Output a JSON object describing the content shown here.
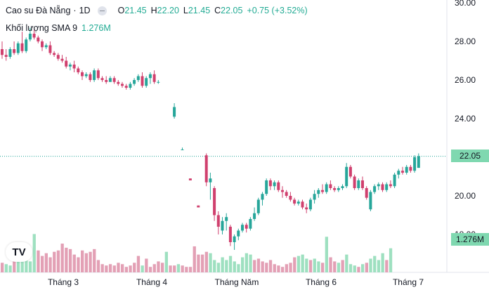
{
  "header": {
    "symbol": "Cao su Đà Nẵng",
    "interval": "1D",
    "open_label": "O",
    "open": "21.45",
    "high_label": "H",
    "high": "22.20",
    "low_label": "L",
    "low": "21.45",
    "close_label": "C",
    "close": "22.05",
    "change": "+0.75 (+3.52%)",
    "volume_label": "Khối lượng SMA 9",
    "volume_value": "1.276M"
  },
  "price_tags": {
    "last_price": "22.05",
    "volume": "1.276M"
  },
  "logo": "TV",
  "colors": {
    "up": "#26a69a",
    "down": "#d0406e",
    "up_volume": "#9ee0c0",
    "down_volume": "#e3a0b5",
    "last_price_line": "#26a69a"
  },
  "chart_data": {
    "type": "candlestick",
    "x_tick_labels": [
      "Tháng 3",
      "Tháng 4",
      "Tháng Năm",
      "Tháng 6",
      "Tháng 7"
    ],
    "y_tick_labels": [
      "30.00",
      "28.00",
      "26.00",
      "24.00",
      "22.00",
      "20.00",
      "18.00"
    ],
    "ylim": [
      17,
      30
    ],
    "last_price": 22.05,
    "candles": [
      {
        "o": 27.6,
        "h": 28.0,
        "l": 27.1,
        "c": 27.3
      },
      {
        "o": 27.3,
        "h": 27.6,
        "l": 27.0,
        "c": 27.2
      },
      {
        "o": 27.2,
        "h": 27.7,
        "l": 27.1,
        "c": 27.6
      },
      {
        "o": 27.6,
        "h": 28.0,
        "l": 27.3,
        "c": 27.4
      },
      {
        "o": 27.4,
        "h": 28.0,
        "l": 27.3,
        "c": 27.9
      },
      {
        "o": 27.9,
        "h": 28.5,
        "l": 27.4,
        "c": 27.5
      },
      {
        "o": 27.5,
        "h": 28.2,
        "l": 27.4,
        "c": 28.1
      },
      {
        "o": 28.1,
        "h": 28.7,
        "l": 28.0,
        "c": 28.4
      },
      {
        "o": 28.4,
        "h": 28.6,
        "l": 28.1,
        "c": 28.2
      },
      {
        "o": 28.2,
        "h": 28.3,
        "l": 27.9,
        "c": 28.0
      },
      {
        "o": 28.0,
        "h": 28.1,
        "l": 27.5,
        "c": 27.7
      },
      {
        "o": 27.7,
        "h": 27.9,
        "l": 27.6,
        "c": 27.8
      },
      {
        "o": 27.8,
        "h": 28.0,
        "l": 27.3,
        "c": 27.4
      },
      {
        "o": 27.4,
        "h": 27.5,
        "l": 27.2,
        "c": 27.3
      },
      {
        "o": 27.3,
        "h": 27.4,
        "l": 27.0,
        "c": 27.1
      },
      {
        "o": 27.1,
        "h": 27.3,
        "l": 26.9,
        "c": 27.0
      },
      {
        "o": 27.0,
        "h": 27.2,
        "l": 26.6,
        "c": 26.7
      },
      {
        "o": 26.7,
        "h": 26.9,
        "l": 26.5,
        "c": 26.8
      },
      {
        "o": 26.8,
        "h": 27.0,
        "l": 26.4,
        "c": 26.6
      },
      {
        "o": 26.6,
        "h": 26.7,
        "l": 26.3,
        "c": 26.4
      },
      {
        "o": 26.4,
        "h": 26.5,
        "l": 26.0,
        "c": 26.2
      },
      {
        "o": 26.2,
        "h": 26.4,
        "l": 26.1,
        "c": 26.3
      },
      {
        "o": 26.3,
        "h": 26.4,
        "l": 25.9,
        "c": 26.0
      },
      {
        "o": 26.0,
        "h": 26.6,
        "l": 25.9,
        "c": 26.5
      },
      {
        "o": 26.5,
        "h": 26.6,
        "l": 26.0,
        "c": 26.1
      },
      {
        "o": 26.1,
        "h": 26.2,
        "l": 25.9,
        "c": 26.0
      },
      {
        "o": 26.0,
        "h": 26.2,
        "l": 25.8,
        "c": 25.9
      },
      {
        "o": 25.9,
        "h": 26.2,
        "l": 25.9,
        "c": 26.1
      },
      {
        "o": 26.1,
        "h": 26.2,
        "l": 25.8,
        "c": 25.9
      },
      {
        "o": 25.9,
        "h": 26.0,
        "l": 25.7,
        "c": 25.8
      },
      {
        "o": 25.8,
        "h": 25.9,
        "l": 25.6,
        "c": 25.7
      },
      {
        "o": 25.7,
        "h": 25.8,
        "l": 25.5,
        "c": 25.6
      },
      {
        "o": 25.6,
        "h": 25.9,
        "l": 25.5,
        "c": 25.8
      },
      {
        "o": 25.8,
        "h": 26.1,
        "l": 25.7,
        "c": 26.0
      },
      {
        "o": 26.0,
        "h": 26.3,
        "l": 25.9,
        "c": 26.2
      },
      {
        "o": 26.2,
        "h": 26.4,
        "l": 25.6,
        "c": 25.7
      },
      {
        "o": 25.7,
        "h": 26.2,
        "l": 25.6,
        "c": 26.1
      },
      {
        "o": 26.1,
        "h": 26.4,
        "l": 25.8,
        "c": 26.3
      },
      {
        "o": 26.3,
        "h": 26.5,
        "l": 25.8,
        "c": 25.9
      },
      {
        "o": 25.9,
        "h": 26.0,
        "l": 25.8,
        "c": 25.9
      },
      null,
      null,
      null,
      {
        "o": 24.1,
        "h": 24.8,
        "l": 24.0,
        "c": 24.6
      },
      null,
      {
        "o": 22.4,
        "h": 22.5,
        "l": 22.4,
        "c": 22.4
      },
      null,
      {
        "o": 20.9,
        "h": 20.9,
        "l": 20.8,
        "c": 20.8
      },
      null,
      {
        "o": 19.5,
        "h": 19.5,
        "l": 19.4,
        "c": 19.4
      },
      null,
      {
        "o": 22.1,
        "h": 22.2,
        "l": 20.5,
        "c": 20.7
      },
      {
        "o": 20.7,
        "h": 21.2,
        "l": 19.8,
        "c": 20.9
      },
      {
        "o": 20.4,
        "h": 20.5,
        "l": 18.7,
        "c": 19.0
      },
      {
        "o": 19.0,
        "h": 19.2,
        "l": 18.0,
        "c": 18.4
      },
      {
        "o": 18.2,
        "h": 18.9,
        "l": 18.0,
        "c": 18.7
      },
      {
        "o": 18.7,
        "h": 19.1,
        "l": 18.2,
        "c": 18.9
      },
      {
        "o": 18.4,
        "h": 18.5,
        "l": 17.4,
        "c": 17.6
      },
      {
        "o": 17.6,
        "h": 18.0,
        "l": 17.2,
        "c": 17.9
      },
      {
        "o": 17.9,
        "h": 18.3,
        "l": 17.7,
        "c": 18.2
      },
      {
        "o": 18.2,
        "h": 18.6,
        "l": 18.1,
        "c": 18.5
      },
      {
        "o": 18.5,
        "h": 18.6,
        "l": 18.1,
        "c": 18.3
      },
      {
        "o": 18.3,
        "h": 18.9,
        "l": 18.2,
        "c": 18.8
      },
      {
        "o": 18.8,
        "h": 19.4,
        "l": 18.7,
        "c": 19.1
      },
      {
        "o": 19.1,
        "h": 19.9,
        "l": 19.0,
        "c": 19.8
      },
      {
        "o": 19.8,
        "h": 20.2,
        "l": 19.5,
        "c": 20.1
      },
      {
        "o": 20.1,
        "h": 20.9,
        "l": 20.0,
        "c": 20.8
      },
      {
        "o": 20.8,
        "h": 20.9,
        "l": 20.3,
        "c": 20.5
      },
      {
        "o": 20.5,
        "h": 20.8,
        "l": 20.3,
        "c": 20.7
      },
      {
        "o": 20.7,
        "h": 20.8,
        "l": 20.2,
        "c": 20.3
      },
      {
        "o": 20.3,
        "h": 20.5,
        "l": 19.9,
        "c": 20.2
      },
      {
        "o": 20.2,
        "h": 20.3,
        "l": 19.9,
        "c": 20.0
      },
      {
        "o": 20.0,
        "h": 20.2,
        "l": 19.7,
        "c": 19.8
      },
      {
        "o": 19.8,
        "h": 19.9,
        "l": 19.5,
        "c": 19.6
      },
      {
        "o": 19.6,
        "h": 19.8,
        "l": 19.5,
        "c": 19.7
      },
      {
        "o": 19.7,
        "h": 19.8,
        "l": 19.3,
        "c": 19.4
      },
      {
        "o": 19.4,
        "h": 19.6,
        "l": 19.1,
        "c": 19.3
      },
      {
        "o": 19.3,
        "h": 19.9,
        "l": 19.2,
        "c": 19.8
      },
      {
        "o": 19.8,
        "h": 20.3,
        "l": 19.6,
        "c": 20.1
      },
      {
        "o": 20.1,
        "h": 20.4,
        "l": 19.9,
        "c": 20.3
      },
      {
        "o": 20.3,
        "h": 20.6,
        "l": 20.1,
        "c": 20.2
      },
      {
        "o": 20.2,
        "h": 20.7,
        "l": 20.1,
        "c": 20.6
      },
      {
        "o": 20.6,
        "h": 20.8,
        "l": 20.3,
        "c": 20.4
      },
      {
        "o": 20.4,
        "h": 20.5,
        "l": 20.2,
        "c": 20.3
      },
      {
        "o": 20.3,
        "h": 20.5,
        "l": 20.2,
        "c": 20.4
      },
      {
        "o": 20.4,
        "h": 20.6,
        "l": 20.3,
        "c": 20.5
      },
      {
        "o": 20.5,
        "h": 21.7,
        "l": 20.4,
        "c": 21.5
      },
      {
        "o": 21.5,
        "h": 21.6,
        "l": 20.9,
        "c": 21.0
      },
      {
        "o": 21.0,
        "h": 21.1,
        "l": 20.3,
        "c": 20.4
      },
      {
        "o": 20.4,
        "h": 20.9,
        "l": 20.3,
        "c": 20.8
      },
      {
        "o": 20.8,
        "h": 21.0,
        "l": 20.3,
        "c": 20.4
      },
      {
        "o": 20.4,
        "h": 20.5,
        "l": 19.8,
        "c": 19.9
      },
      {
        "o": 19.3,
        "h": 20.3,
        "l": 19.2,
        "c": 20.2
      },
      {
        "o": 20.2,
        "h": 20.6,
        "l": 20.1,
        "c": 20.5
      },
      {
        "o": 20.5,
        "h": 20.7,
        "l": 20.3,
        "c": 20.6
      },
      {
        "o": 20.6,
        "h": 20.7,
        "l": 20.2,
        "c": 20.3
      },
      {
        "o": 20.3,
        "h": 20.7,
        "l": 20.2,
        "c": 20.6
      },
      {
        "o": 20.6,
        "h": 20.8,
        "l": 20.4,
        "c": 20.5
      },
      {
        "o": 20.5,
        "h": 21.2,
        "l": 20.4,
        "c": 21.1
      },
      {
        "o": 21.1,
        "h": 21.4,
        "l": 20.9,
        "c": 21.3
      },
      {
        "o": 21.3,
        "h": 21.5,
        "l": 21.1,
        "c": 21.2
      },
      {
        "o": 21.2,
        "h": 21.6,
        "l": 21.1,
        "c": 21.5
      },
      {
        "o": 21.5,
        "h": 21.6,
        "l": 21.2,
        "c": 21.3
      },
      {
        "o": 21.3,
        "h": 22.1,
        "l": 21.2,
        "c": 22.0
      },
      {
        "o": 21.45,
        "h": 22.2,
        "l": 21.45,
        "c": 22.05
      }
    ],
    "volumes": [
      {
        "v": 0.7,
        "up": false
      },
      {
        "v": 0.6,
        "up": true
      },
      {
        "v": 0.5,
        "up": true
      },
      {
        "v": 0.8,
        "up": false
      },
      {
        "v": 0.9,
        "up": true
      },
      {
        "v": 1.9,
        "up": true
      },
      {
        "v": 0.9,
        "up": true
      },
      {
        "v": 0.8,
        "up": true
      },
      {
        "v": 2.8,
        "up": true
      },
      {
        "v": 1.6,
        "up": false
      },
      {
        "v": 1.2,
        "up": false
      },
      {
        "v": 1.4,
        "up": false
      },
      {
        "v": 1.1,
        "up": false
      },
      {
        "v": 1.5,
        "up": false
      },
      {
        "v": 1.6,
        "up": false
      },
      {
        "v": 2.1,
        "up": false
      },
      {
        "v": 1.8,
        "up": false
      },
      {
        "v": 1.7,
        "up": false
      },
      {
        "v": 1.3,
        "up": false
      },
      {
        "v": 1.1,
        "up": false
      },
      {
        "v": 1.6,
        "up": false
      },
      {
        "v": 1.4,
        "up": false
      },
      {
        "v": 1.5,
        "up": false
      },
      {
        "v": 1.7,
        "up": false
      },
      {
        "v": 0.9,
        "up": false
      },
      {
        "v": 0.6,
        "up": false
      },
      {
        "v": 0.5,
        "up": false
      },
      {
        "v": 0.6,
        "up": false
      },
      {
        "v": 0.5,
        "up": false
      },
      {
        "v": 0.7,
        "up": false
      },
      {
        "v": 0.6,
        "up": false
      },
      {
        "v": 0.4,
        "up": false
      },
      {
        "v": 0.5,
        "up": false
      },
      {
        "v": 0.7,
        "up": false
      },
      {
        "v": 1.2,
        "up": false
      },
      {
        "v": 0.5,
        "up": true
      },
      {
        "v": 1.0,
        "up": false
      },
      {
        "v": 0.4,
        "up": false
      },
      {
        "v": 0.6,
        "up": false
      },
      {
        "v": 0.8,
        "up": false
      },
      {
        "v": 0.7,
        "up": false
      },
      {
        "v": 1.5,
        "up": true
      },
      {
        "v": 0.5,
        "up": false
      },
      {
        "v": 0.5,
        "up": false
      },
      {
        "v": 0.6,
        "up": true
      },
      {
        "v": 0.5,
        "up": false
      },
      {
        "v": 0.4,
        "up": false
      },
      {
        "v": 0.4,
        "up": false
      },
      {
        "v": 1.9,
        "up": false
      },
      {
        "v": 1.3,
        "up": false
      },
      {
        "v": 1.3,
        "up": false
      },
      {
        "v": 1.5,
        "up": false
      },
      {
        "v": 1.4,
        "up": true
      },
      {
        "v": 0.9,
        "up": true
      },
      {
        "v": 0.7,
        "up": true
      },
      {
        "v": 1.1,
        "up": true
      },
      {
        "v": 0.9,
        "up": true
      },
      {
        "v": 1.2,
        "up": true
      },
      {
        "v": 0.8,
        "up": true
      },
      {
        "v": 0.6,
        "up": true
      },
      {
        "v": 1.1,
        "up": true
      },
      {
        "v": 1.4,
        "up": true
      },
      {
        "v": 1.3,
        "up": true
      },
      {
        "v": 0.9,
        "up": false
      },
      {
        "v": 1.0,
        "up": false
      },
      {
        "v": 0.8,
        "up": false
      },
      {
        "v": 0.7,
        "up": false
      },
      {
        "v": 0.9,
        "up": false
      },
      {
        "v": 0.6,
        "up": false
      },
      {
        "v": 0.5,
        "up": false
      },
      {
        "v": 0.4,
        "up": false
      },
      {
        "v": 0.6,
        "up": false
      },
      {
        "v": 0.7,
        "up": false
      },
      {
        "v": 1.1,
        "up": false
      },
      {
        "v": 1.2,
        "up": true
      },
      {
        "v": 1.3,
        "up": true
      },
      {
        "v": 1.0,
        "up": true
      },
      {
        "v": 0.9,
        "up": false
      },
      {
        "v": 1.0,
        "up": true
      },
      {
        "v": 0.8,
        "up": true
      },
      {
        "v": 0.7,
        "up": false
      },
      {
        "v": 2.6,
        "up": true
      },
      {
        "v": 1.1,
        "up": false
      },
      {
        "v": 0.8,
        "up": false
      },
      {
        "v": 0.7,
        "up": true
      },
      {
        "v": 0.9,
        "up": false
      },
      {
        "v": 1.3,
        "up": true
      },
      {
        "v": 0.6,
        "up": true
      },
      {
        "v": 0.5,
        "up": true
      },
      {
        "v": 0.4,
        "up": false
      },
      {
        "v": 0.6,
        "up": true
      },
      {
        "v": 0.7,
        "up": false
      },
      {
        "v": 1.0,
        "up": true
      },
      {
        "v": 1.2,
        "up": true
      },
      {
        "v": 0.9,
        "up": true
      },
      {
        "v": 1.4,
        "up": true
      },
      {
        "v": 0.9,
        "up": false
      },
      {
        "v": 1.76,
        "up": true
      }
    ],
    "volume_sma_last": "1.276M"
  }
}
